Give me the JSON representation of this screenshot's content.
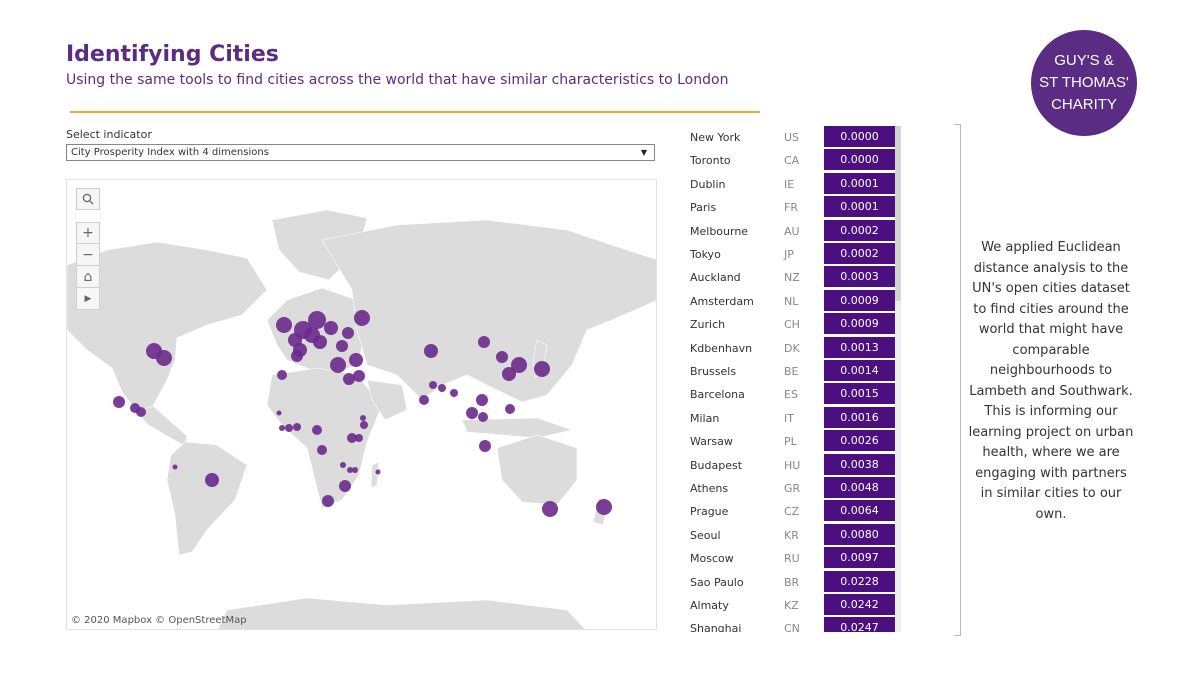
{
  "header": {
    "title": "Identifying Cities",
    "subtitle": "Using the same tools to find cities across the world that have similar characteristics to London"
  },
  "logo": {
    "line1": "GUY'S &",
    "line2": "ST THOMAS'",
    "line3": "CHARITY"
  },
  "filter": {
    "label": "Select indicator",
    "value": "City Prosperity Index with 4 dimensions"
  },
  "map": {
    "credit": "© 2020 Mapbox  © OpenStreetMap"
  },
  "cities": [
    {
      "name": "New York",
      "code": "US",
      "score": "0.0000"
    },
    {
      "name": "Toronto",
      "code": "CA",
      "score": "0.0000"
    },
    {
      "name": "Dublin",
      "code": "IE",
      "score": "0.0001"
    },
    {
      "name": "Paris",
      "code": "FR",
      "score": "0.0001"
    },
    {
      "name": "Melbourne",
      "code": "AU",
      "score": "0.0002"
    },
    {
      "name": "Tokyo",
      "code": "JP",
      "score": "0.0002"
    },
    {
      "name": "Auckland",
      "code": "NZ",
      "score": "0.0003"
    },
    {
      "name": "Amsterdam",
      "code": "NL",
      "score": "0.0009"
    },
    {
      "name": "Zurich",
      "code": "CH",
      "score": "0.0009"
    },
    {
      "name": "Kdbenhavn",
      "code": "DK",
      "score": "0.0013"
    },
    {
      "name": "Brussels",
      "code": "BE",
      "score": "0.0014"
    },
    {
      "name": "Barcelona",
      "code": "ES",
      "score": "0.0015"
    },
    {
      "name": "Milan",
      "code": "IT",
      "score": "0.0016"
    },
    {
      "name": "Warsaw",
      "code": "PL",
      "score": "0.0026"
    },
    {
      "name": "Budapest",
      "code": "HU",
      "score": "0.0038"
    },
    {
      "name": "Athens",
      "code": "GR",
      "score": "0.0048"
    },
    {
      "name": "Prague",
      "code": "CZ",
      "score": "0.0064"
    },
    {
      "name": "Seoul",
      "code": "KR",
      "score": "0.0080"
    },
    {
      "name": "Moscow",
      "code": "RU",
      "score": "0.0097"
    },
    {
      "name": "Sao Paulo",
      "code": "BR",
      "score": "0.0228"
    },
    {
      "name": "Almaty",
      "code": "KZ",
      "score": "0.0242"
    },
    {
      "name": "Shanghai",
      "code": "CN",
      "score": "0.0247"
    }
  ],
  "description": "We applied Euclidean distance analysis to the UN's open cities dataset to find cities around the world that might have comparable neighbourhoods to Lambeth and Southwark. This is informing our learning project on urban health, where we are engaging with partners in similar cities to our own.",
  "colors": {
    "accent": "#5b2c83",
    "bar": "#4b0f80",
    "rule": "#f2a33a",
    "marker": "#6a2a8c"
  }
}
